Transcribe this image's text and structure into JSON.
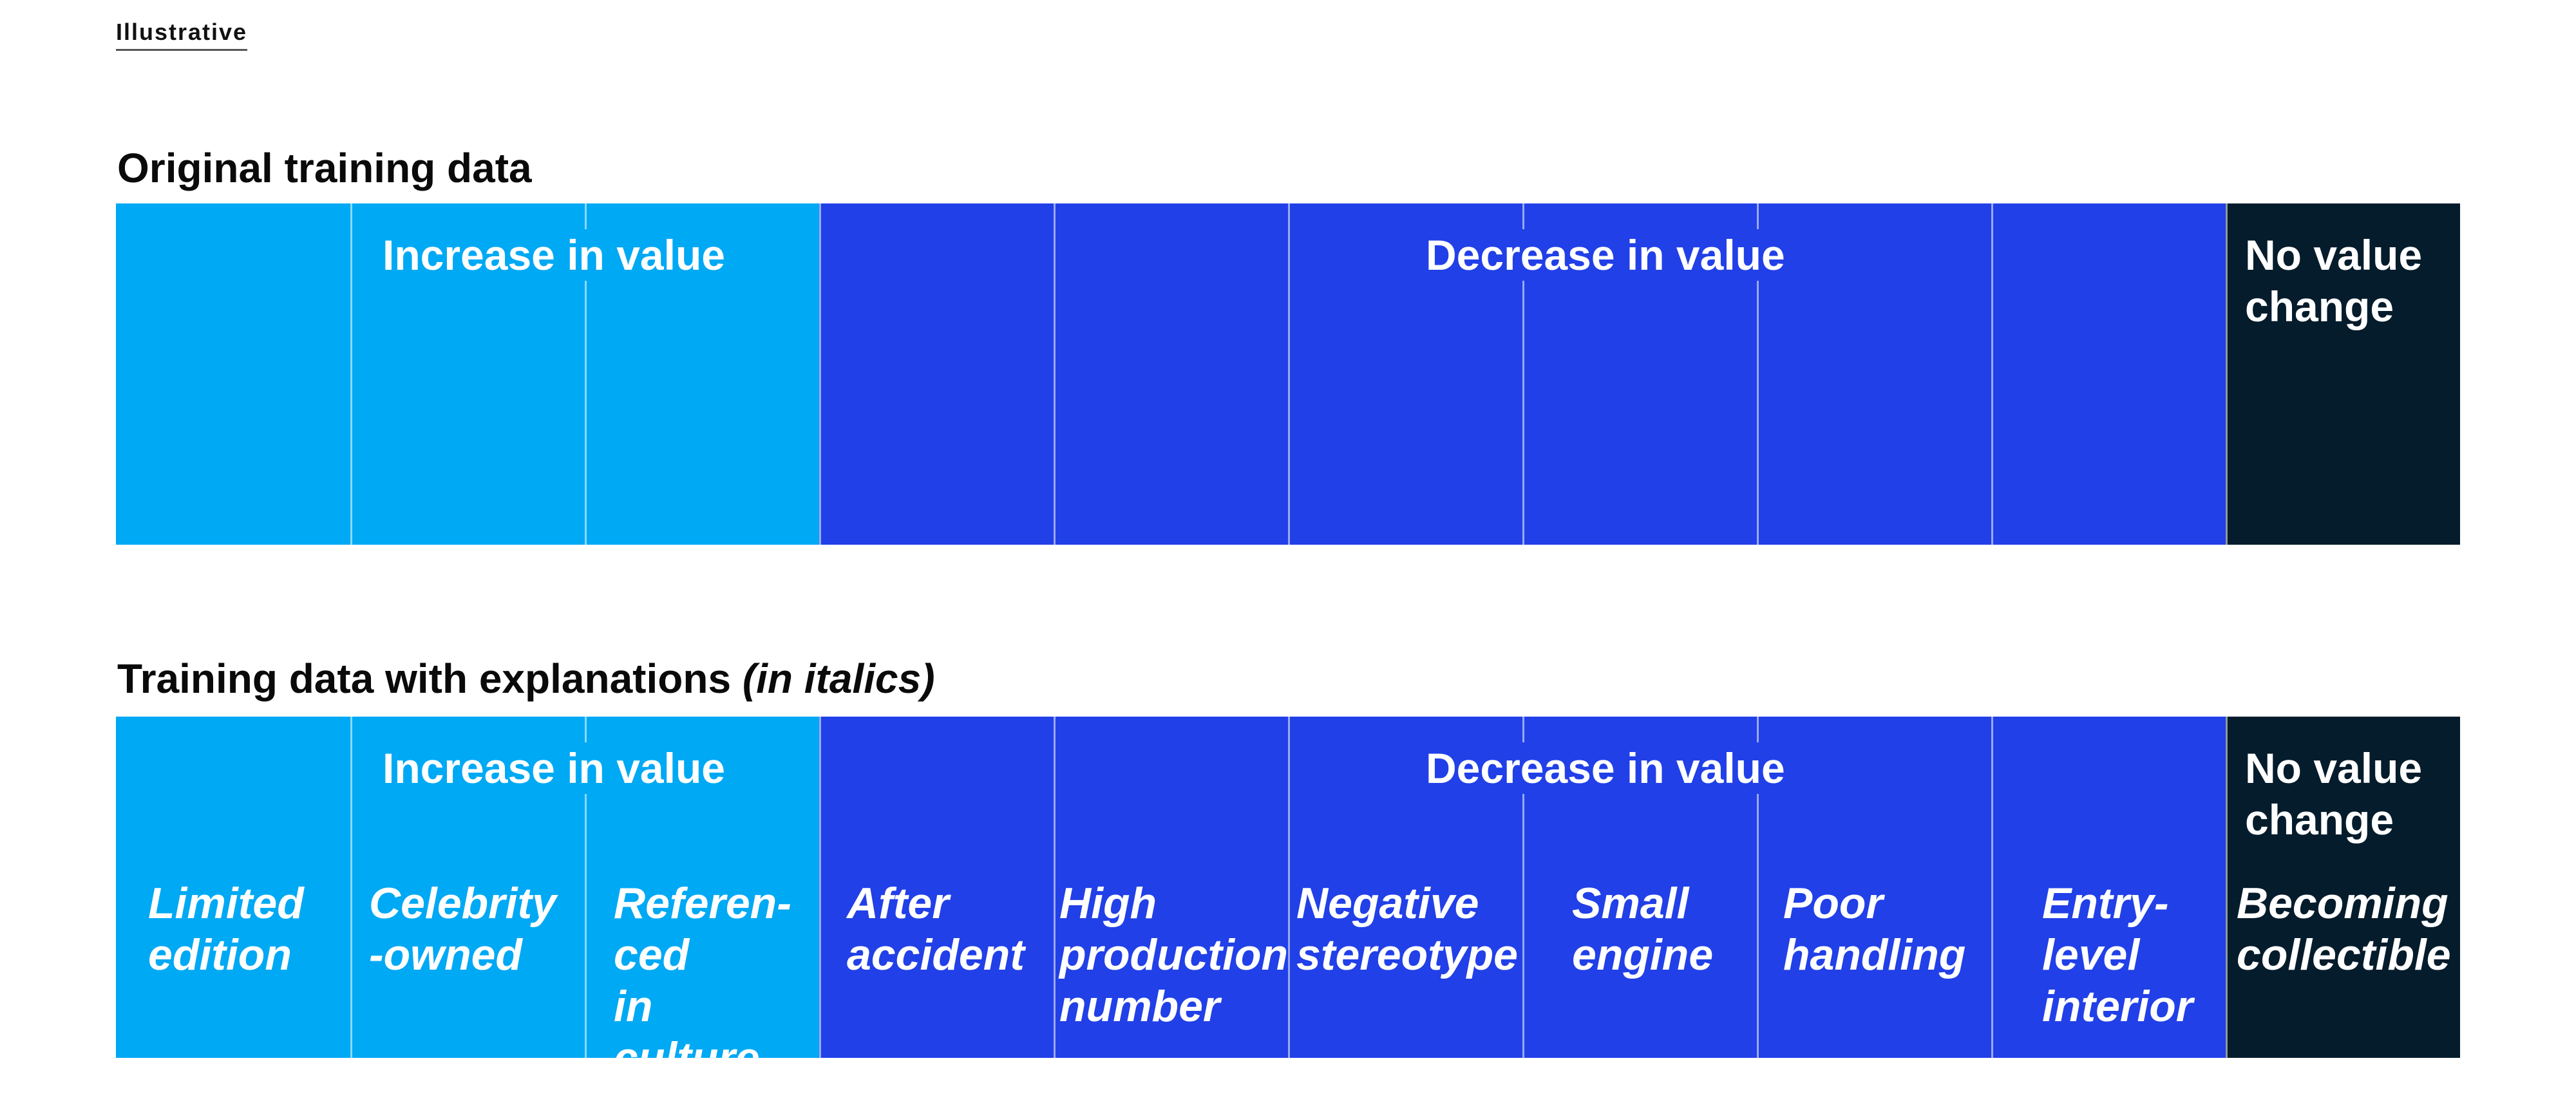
{
  "header": {
    "tag": "Illustrative"
  },
  "colors": {
    "increase": "#00A9F4",
    "decrease": "#2140E8",
    "no_change": "#051C2C",
    "text": "#FFFFFF"
  },
  "sections": [
    {
      "title": "Original training data",
      "title_italic": "",
      "groups": {
        "increase": "Increase in value",
        "decrease": "Decrease in value",
        "no_change": "No value change"
      },
      "explanations": []
    },
    {
      "title": "Training data with explanations ",
      "title_italic": "(in italics)",
      "groups": {
        "increase": "Increase in value",
        "decrease": "Decrease in value",
        "no_change": "No value change"
      },
      "explanations": [
        "Limited edition",
        "Celebrity -owned",
        "Referen- ced in culture",
        "After accident",
        "High production number",
        "Negative stereotype",
        "Small engine",
        "Poor handling",
        "Entry- level interior",
        "Becoming collectible"
      ]
    }
  ]
}
